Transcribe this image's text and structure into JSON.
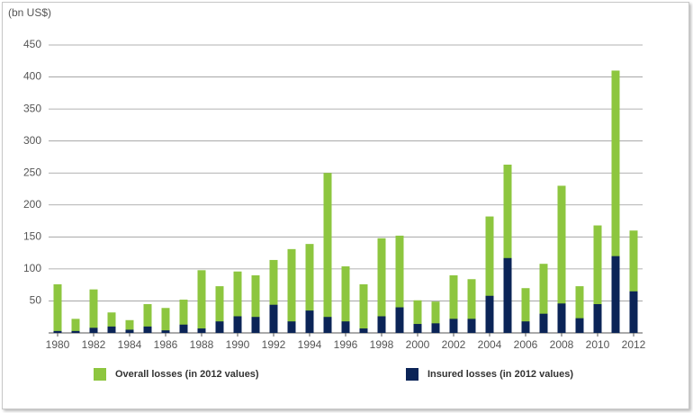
{
  "chart_data": {
    "type": "bar",
    "y_label": "(bn US$)",
    "x": [
      1980,
      1981,
      1982,
      1983,
      1984,
      1985,
      1986,
      1987,
      1988,
      1989,
      1990,
      1991,
      1992,
      1993,
      1994,
      1995,
      1996,
      1997,
      1998,
      1999,
      2000,
      2001,
      2002,
      2003,
      2004,
      2005,
      2006,
      2007,
      2008,
      2009,
      2010,
      2011,
      2012
    ],
    "xlim": [
      1979.5,
      2012.5
    ],
    "xticks": [
      1980,
      1982,
      1984,
      1986,
      1988,
      1990,
      1992,
      1994,
      1996,
      1998,
      2000,
      2002,
      2004,
      2006,
      2008,
      2010,
      2012
    ],
    "ylim": [
      0,
      450
    ],
    "yticks": [
      50,
      100,
      150,
      200,
      250,
      300,
      350,
      400,
      450
    ],
    "grid": true,
    "series": [
      {
        "name": "Overall losses (in 2012 values)",
        "color": "#8dc63f",
        "values": [
          76,
          22,
          68,
          32,
          20,
          45,
          39,
          52,
          98,
          73,
          96,
          90,
          114,
          131,
          139,
          250,
          104,
          76,
          148,
          152,
          51,
          49,
          90,
          84,
          182,
          263,
          70,
          108,
          230,
          73,
          168,
          410,
          160
        ]
      },
      {
        "name": "Insured losses (in 2012 values)",
        "color": "#0b2457",
        "values": [
          3,
          3,
          8,
          10,
          5,
          10,
          4,
          13,
          7,
          18,
          26,
          25,
          44,
          18,
          35,
          25,
          18,
          7,
          26,
          40,
          14,
          15,
          22,
          22,
          58,
          117,
          18,
          30,
          46,
          23,
          45,
          120,
          65
        ]
      }
    ]
  }
}
